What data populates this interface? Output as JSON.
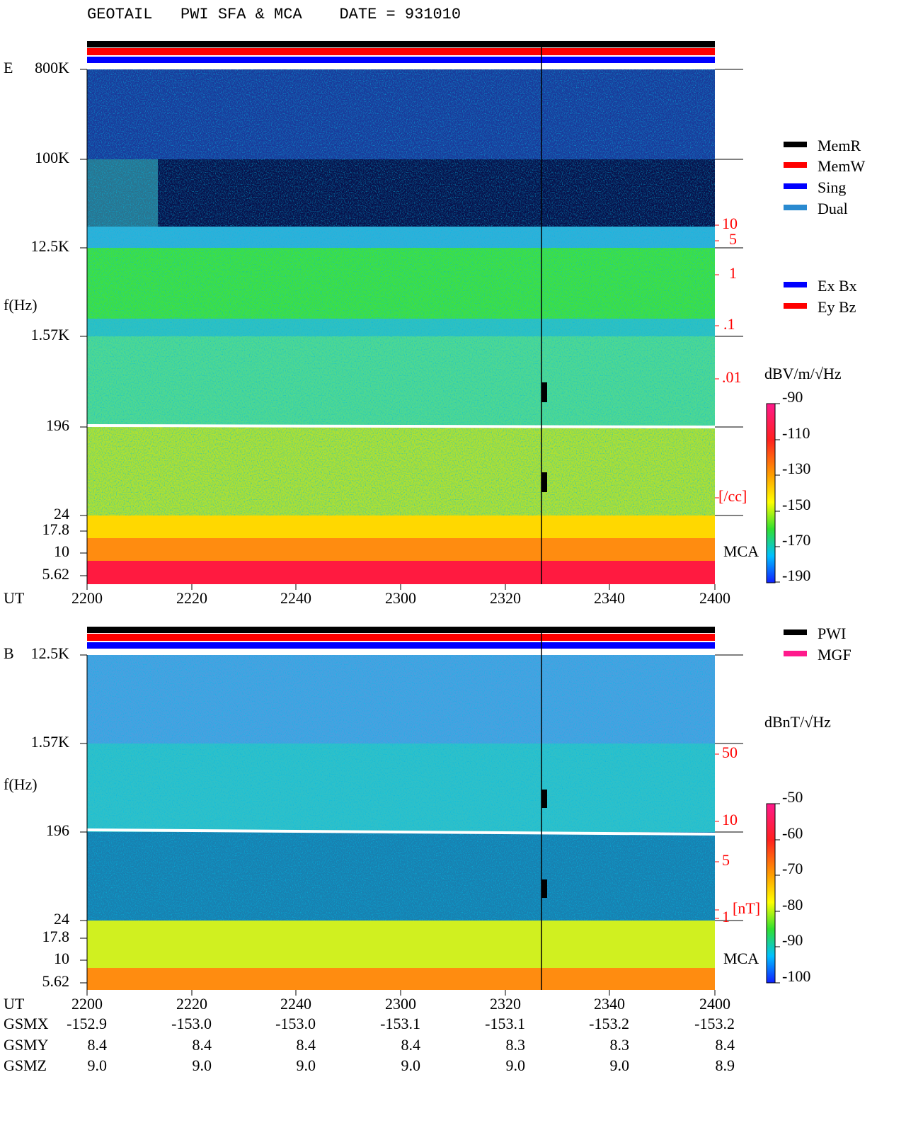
{
  "header": {
    "title": "GEOTAIL   PWI SFA & MCA    DATE = 931010"
  },
  "panels": [
    {
      "id": "E",
      "axis_label": "f(Hz)",
      "freq_labels": [
        "800K",
        "100K",
        "12.5K",
        "1.57K",
        "196",
        "24",
        "17.8",
        "10",
        "5.62"
      ],
      "right_labels": [
        "10",
        "5",
        "1",
        ".1",
        ".01",
        "[/cc]"
      ],
      "mca": "MCA",
      "time_label": "UT",
      "times": [
        "2200",
        "2220",
        "2240",
        "2300",
        "2320",
        "2340",
        "2400"
      ],
      "legend": [
        {
          "name": "MemR",
          "color": "#000000"
        },
        {
          "name": "MemW",
          "color": "#ff0000"
        },
        {
          "name": "Sing",
          "color": "#0000ff"
        },
        {
          "name": "Dual",
          "color": "#2a8ad0"
        }
      ],
      "mode_legend": [
        {
          "name": "Ex Bx",
          "color": "#0000ff"
        },
        {
          "name": "Ey Bz",
          "color": "#ff0000"
        }
      ],
      "colorbar": {
        "title": "dBV/m/√Hz",
        "ticks": [
          "-90",
          "-110",
          "-130",
          "-150",
          "-170",
          "-190"
        ]
      }
    },
    {
      "id": "B",
      "axis_label": "f(Hz)",
      "freq_labels": [
        "12.5K",
        "1.57K",
        "196",
        "24",
        "17.8",
        "10",
        "5.62"
      ],
      "right_labels": [
        "50",
        "10",
        "5",
        "1",
        "[nT]"
      ],
      "mca": "MCA",
      "time_label": "UT",
      "times": [
        "2200",
        "2220",
        "2240",
        "2300",
        "2320",
        "2340",
        "2400"
      ],
      "legend": [
        {
          "name": "PWI",
          "color": "#000000"
        },
        {
          "name": "MGF",
          "color": "#ff1a8c"
        }
      ],
      "colorbar": {
        "title": "dBnT/√Hz",
        "ticks": [
          "-50",
          "-60",
          "-70",
          "-80",
          "-90",
          "-100"
        ]
      }
    }
  ],
  "orbit": {
    "rows": [
      {
        "label": "GSMX",
        "values": [
          "-152.9",
          "-153.0",
          "-153.0",
          "-153.1",
          "-153.1",
          "-153.2",
          "-153.2"
        ]
      },
      {
        "label": "GSMY",
        "values": [
          "8.4",
          "8.4",
          "8.4",
          "8.4",
          "8.3",
          "8.3",
          "8.4"
        ]
      },
      {
        "label": "GSMZ",
        "values": [
          "9.0",
          "9.0",
          "9.0",
          "9.0",
          "9.0",
          "9.0",
          "8.9"
        ]
      }
    ]
  }
}
